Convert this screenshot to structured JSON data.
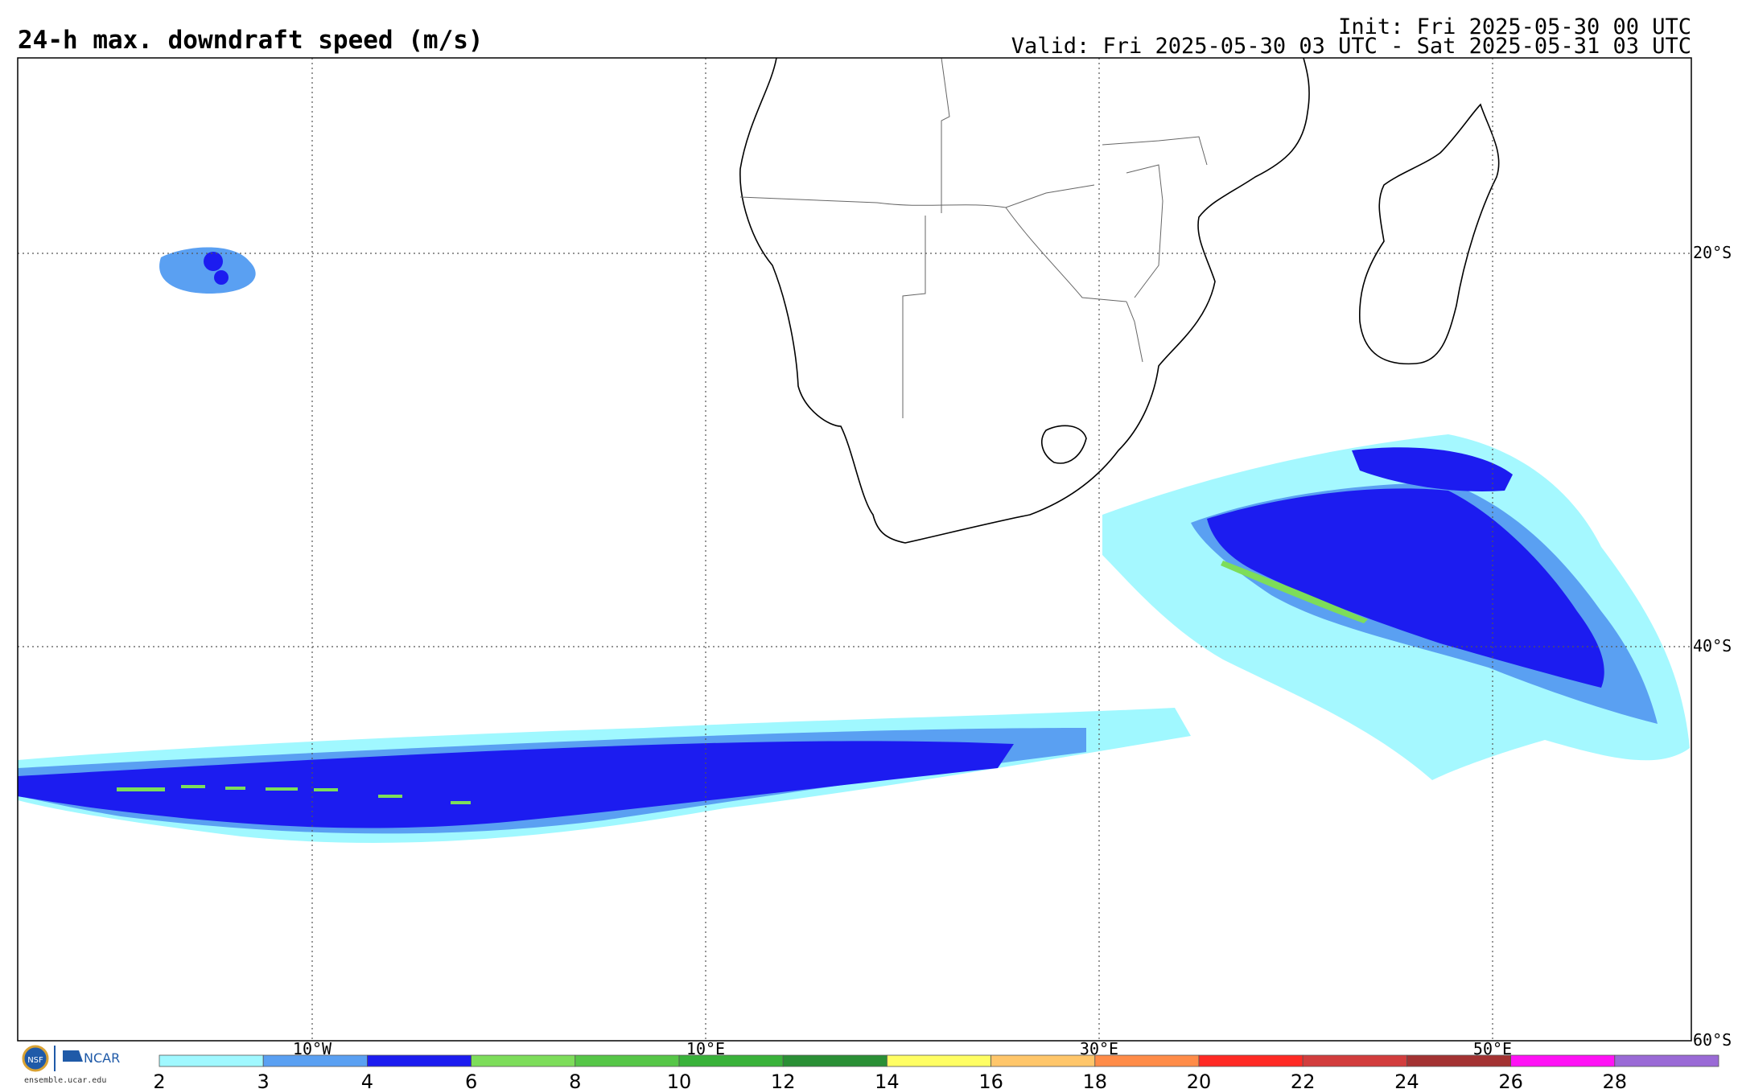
{
  "header": {
    "title": "24-h max. downdraft speed (m/s)",
    "init": "Init: Fri 2025-05-30 00 UTC",
    "valid": "Valid: Fri 2025-05-30 03 UTC - Sat 2025-05-31 03 UTC"
  },
  "map": {
    "lon_labels": [
      "10°W",
      "10°E",
      "30°E",
      "50°E"
    ],
    "lat_labels": [
      "20°S",
      "40°S",
      "60°S"
    ],
    "grid_style": "dotted",
    "colors": {
      "light": "#a0f8ff",
      "mid": "#5aa0f2",
      "strong": "#1c1cf0",
      "green": "#7ddd5a",
      "land_border": "#000000"
    }
  },
  "colorbar": {
    "colors": [
      "#a0f8ff",
      "#5aa0f2",
      "#1c1cf0",
      "#7ddd5a",
      "#56c647",
      "#39b23a",
      "#2a8f35",
      "#fffe63",
      "#ffc66a",
      "#ff8c48",
      "#ff2a24",
      "#d23d3d",
      "#a33232",
      "#ff12f5",
      "#9a6ad6"
    ],
    "ticks": [
      "2",
      "3",
      "4",
      "6",
      "8",
      "10",
      "12",
      "14",
      "16",
      "18",
      "20",
      "22",
      "24",
      "26",
      "28"
    ]
  },
  "footer": {
    "logo1": "NSF",
    "logo2": "NCAR",
    "url": "ensemble.ucar.edu"
  }
}
